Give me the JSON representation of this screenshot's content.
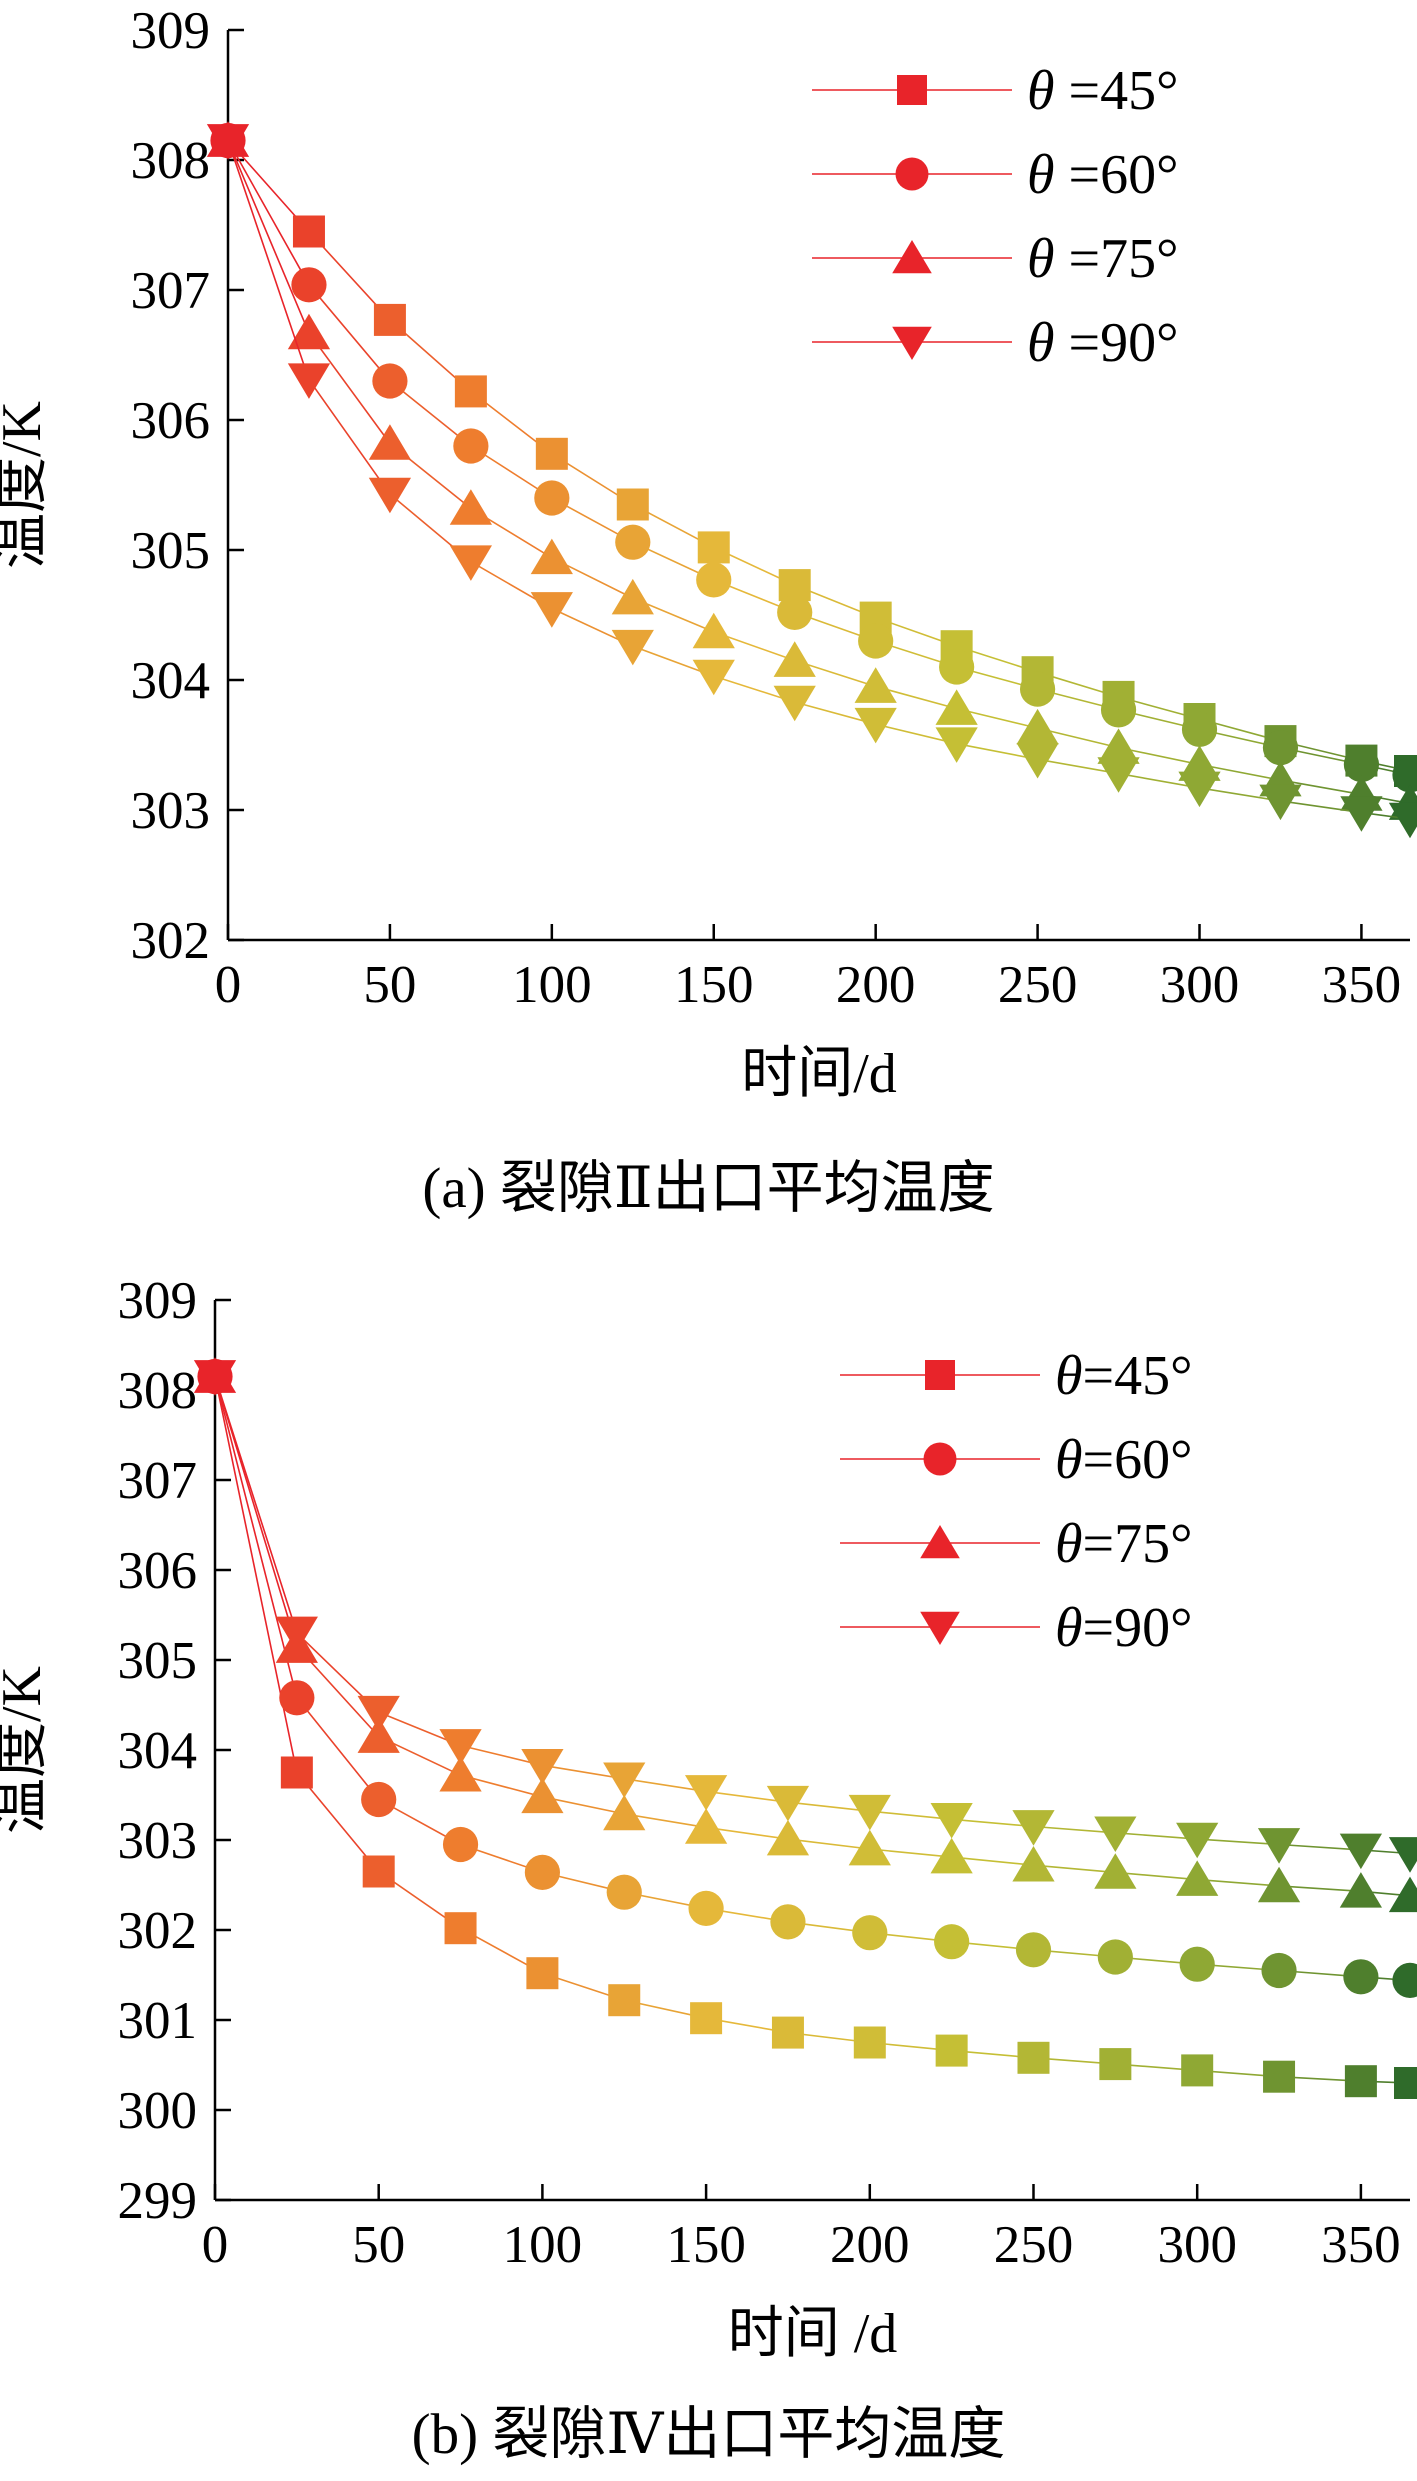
{
  "chart_data": [
    {
      "type": "line",
      "caption": "(a) 裂隙Ⅱ出口平均温度",
      "xlabel": "时间/d",
      "ylabel": "温度/K",
      "xlim": [
        0,
        365
      ],
      "ylim": [
        302,
        309
      ],
      "xticks": [
        "0",
        "50",
        "100",
        "150",
        "200",
        "250",
        "300",
        "350"
      ],
      "yticks": [
        "302",
        "303",
        "304",
        "305",
        "306",
        "307",
        "308",
        "309"
      ],
      "grid": false,
      "legend": "top-right",
      "x": [
        0,
        25,
        50,
        75,
        100,
        125,
        150,
        175,
        200,
        225,
        250,
        275,
        300,
        325,
        350,
        365
      ],
      "series": [
        {
          "name": "θ =45°",
          "marker": "square",
          "values": [
            308.15,
            307.45,
            306.77,
            306.22,
            305.74,
            305.35,
            305.02,
            304.73,
            304.48,
            304.26,
            304.06,
            303.87,
            303.7,
            303.53,
            303.38,
            303.3
          ]
        },
        {
          "name": "θ =60°",
          "marker": "circle",
          "values": [
            308.15,
            307.04,
            306.3,
            305.8,
            305.4,
            305.06,
            304.77,
            304.52,
            304.3,
            304.1,
            303.93,
            303.77,
            303.62,
            303.48,
            303.35,
            303.27
          ]
        },
        {
          "name": "θ =75°",
          "marker": "triangle-up",
          "values": [
            308.15,
            306.67,
            305.82,
            305.32,
            304.94,
            304.63,
            304.37,
            304.15,
            303.95,
            303.78,
            303.63,
            303.48,
            303.35,
            303.23,
            303.12,
            303.05
          ]
        },
        {
          "name": "θ =90°",
          "marker": "triangle-down",
          "values": [
            308.15,
            306.31,
            305.43,
            304.91,
            304.55,
            304.26,
            304.03,
            303.83,
            303.66,
            303.51,
            303.39,
            303.28,
            303.17,
            303.07,
            302.98,
            302.93
          ]
        }
      ]
    },
    {
      "type": "line",
      "caption": "(b) 裂隙Ⅳ出口平均温度",
      "xlabel": "时间 /d",
      "ylabel": "温度/K",
      "xlim": [
        0,
        365
      ],
      "ylim": [
        299,
        309
      ],
      "xticks": [
        "0",
        "50",
        "100",
        "150",
        "200",
        "250",
        "300",
        "350"
      ],
      "yticks": [
        "299",
        "300",
        "301",
        "302",
        "303",
        "304",
        "305",
        "306",
        "307",
        "308",
        "309"
      ],
      "grid": false,
      "legend": "top-right",
      "x": [
        0,
        25,
        50,
        75,
        100,
        125,
        150,
        175,
        200,
        225,
        250,
        275,
        300,
        325,
        350,
        365
      ],
      "series": [
        {
          "name": "θ=45°",
          "marker": "square",
          "values": [
            308.15,
            303.75,
            302.65,
            302.02,
            301.52,
            301.22,
            301.02,
            300.86,
            300.75,
            300.66,
            300.58,
            300.51,
            300.44,
            300.37,
            300.32,
            300.3
          ]
        },
        {
          "name": "θ=60°",
          "marker": "circle",
          "values": [
            308.15,
            304.58,
            303.45,
            302.95,
            302.64,
            302.42,
            302.24,
            302.09,
            301.97,
            301.87,
            301.78,
            301.7,
            301.62,
            301.55,
            301.48,
            301.44
          ]
        },
        {
          "name": "θ=75°",
          "marker": "triangle-up",
          "values": [
            308.15,
            305.15,
            304.15,
            303.72,
            303.48,
            303.29,
            303.14,
            303.01,
            302.9,
            302.81,
            302.72,
            302.64,
            302.56,
            302.49,
            302.43,
            302.38
          ]
        },
        {
          "name": "θ=90°",
          "marker": "triangle-down",
          "values": [
            308.15,
            305.3,
            304.42,
            304.05,
            303.83,
            303.68,
            303.54,
            303.42,
            303.32,
            303.23,
            303.15,
            303.08,
            303.01,
            302.95,
            302.89,
            302.85
          ]
        }
      ]
    }
  ],
  "legend_color": "#e8242a",
  "gradient_colors": [
    "#e8242a",
    "#ee7d2e",
    "#e5b83a",
    "#c5bf35",
    "#8fa834",
    "#2f6b2a"
  ],
  "theta_symbol": "θ"
}
